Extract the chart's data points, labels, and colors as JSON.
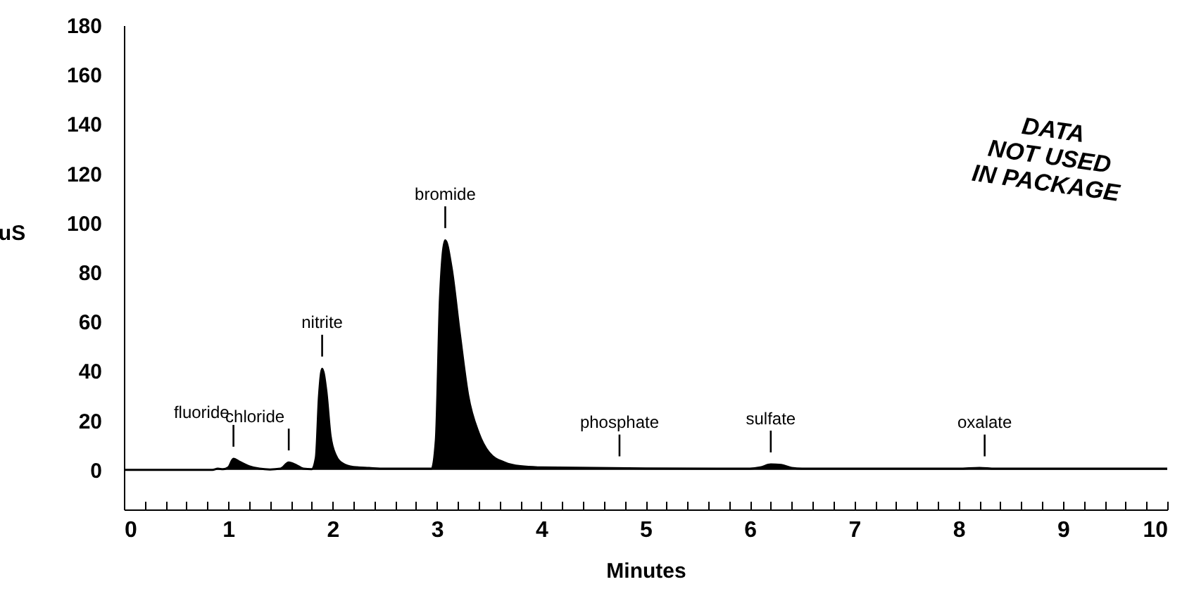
{
  "chart_data": {
    "type": "area",
    "xlabel": "Minutes",
    "ylabel": "uS",
    "x": [
      0,
      0.85,
      0.9,
      0.95,
      1.0,
      1.05,
      1.1,
      1.2,
      1.3,
      1.4,
      1.5,
      1.58,
      1.65,
      1.72,
      1.8,
      1.84,
      1.87,
      1.9,
      1.94,
      1.98,
      2.03,
      2.1,
      2.2,
      2.35,
      2.5,
      2.95,
      2.99,
      3.03,
      3.08,
      3.14,
      3.22,
      3.3,
      3.4,
      3.5,
      3.65,
      3.8,
      4.0,
      4.5,
      5.0,
      6.0,
      6.1,
      6.2,
      6.3,
      6.4,
      6.5,
      8.0,
      8.2,
      8.35,
      10
    ],
    "series": [
      {
        "color": "#000000",
        "values": [
          0,
          0,
          0.5,
          0.3,
          1,
          4.5,
          3.5,
          1.5,
          0.5,
          0.2,
          0.5,
          3,
          2,
          0.5,
          0.3,
          5,
          30,
          41,
          32,
          14,
          6,
          2.5,
          1.2,
          0.8,
          0.5,
          0.5,
          12,
          70,
          93,
          82,
          55,
          30,
          15,
          7,
          3,
          1.5,
          1,
          0.8,
          0.6,
          0.5,
          1,
          2.2,
          2,
          0.8,
          0.5,
          0.5,
          0.8,
          0.5,
          0.5
        ]
      }
    ],
    "xlim": [
      0,
      10
    ],
    "ylim": [
      -16,
      180
    ],
    "xticks": [
      0,
      {
        "value": 0.2,
        "label": null
      },
      {
        "value": 0.4,
        "label": null
      },
      {
        "value": 0.6,
        "label": null
      },
      {
        "value": 0.8,
        "label": null
      },
      1,
      {
        "value": 1.2,
        "label": null
      },
      {
        "value": 1.4,
        "label": null
      },
      {
        "value": 1.6,
        "label": null
      },
      {
        "value": 1.8,
        "label": null
      },
      2,
      {
        "value": 2.2,
        "label": null
      },
      {
        "value": 2.4,
        "label": null
      },
      {
        "value": 2.6,
        "label": null
      },
      {
        "value": 2.8,
        "label": null
      },
      3,
      {
        "value": 3.2,
        "label": null
      },
      {
        "value": 3.4,
        "label": null
      },
      {
        "value": 3.6,
        "label": null
      },
      {
        "value": 3.8,
        "label": null
      },
      4,
      {
        "value": 4.2,
        "label": null
      },
      {
        "value": 4.4,
        "label": null
      },
      {
        "value": 4.6,
        "label": null
      },
      {
        "value": 4.8,
        "label": null
      },
      5,
      {
        "value": 5.2,
        "label": null
      },
      {
        "value": 5.4,
        "label": null
      },
      {
        "value": 5.6,
        "label": null
      },
      {
        "value": 5.8,
        "label": null
      },
      6,
      {
        "value": 6.2,
        "label": null
      },
      {
        "value": 6.4,
        "label": null
      },
      {
        "value": 6.6,
        "label": null
      },
      {
        "value": 6.8,
        "label": null
      },
      7,
      {
        "value": 7.2,
        "label": null
      },
      {
        "value": 7.4,
        "label": null
      },
      {
        "value": 7.6,
        "label": null
      },
      {
        "value": 7.8,
        "label": null
      },
      8,
      {
        "value": 8.2,
        "label": null
      },
      {
        "value": 8.4,
        "label": null
      },
      {
        "value": 8.6,
        "label": null
      },
      {
        "value": 8.8,
        "label": null
      },
      9,
      {
        "value": 9.2,
        "label": null
      },
      {
        "value": 9.4,
        "label": null
      },
      {
        "value": 9.6,
        "label": null
      },
      {
        "value": 9.8,
        "label": null
      },
      10
    ],
    "yticks": [
      0,
      20,
      40,
      60,
      80,
      100,
      120,
      140,
      160,
      180
    ],
    "grid": false,
    "annotations": [
      {
        "text": "fluoride",
        "x": 1.05,
        "y": 4.5
      },
      {
        "text": "chloride",
        "x": 1.58,
        "y": 3
      },
      {
        "text": "nitrite",
        "x": 1.9,
        "y": 41
      },
      {
        "text": "bromide",
        "x": 3.08,
        "y": 93
      },
      {
        "text": "phosphate",
        "x": 4.75,
        "y": 0.6
      },
      {
        "text": "sulfate",
        "x": 6.2,
        "y": 2.2
      },
      {
        "text": "oxalate",
        "x": 8.25,
        "y": 0.6
      },
      "DATA\nNOT USED\nIN PACKAGE"
    ]
  }
}
